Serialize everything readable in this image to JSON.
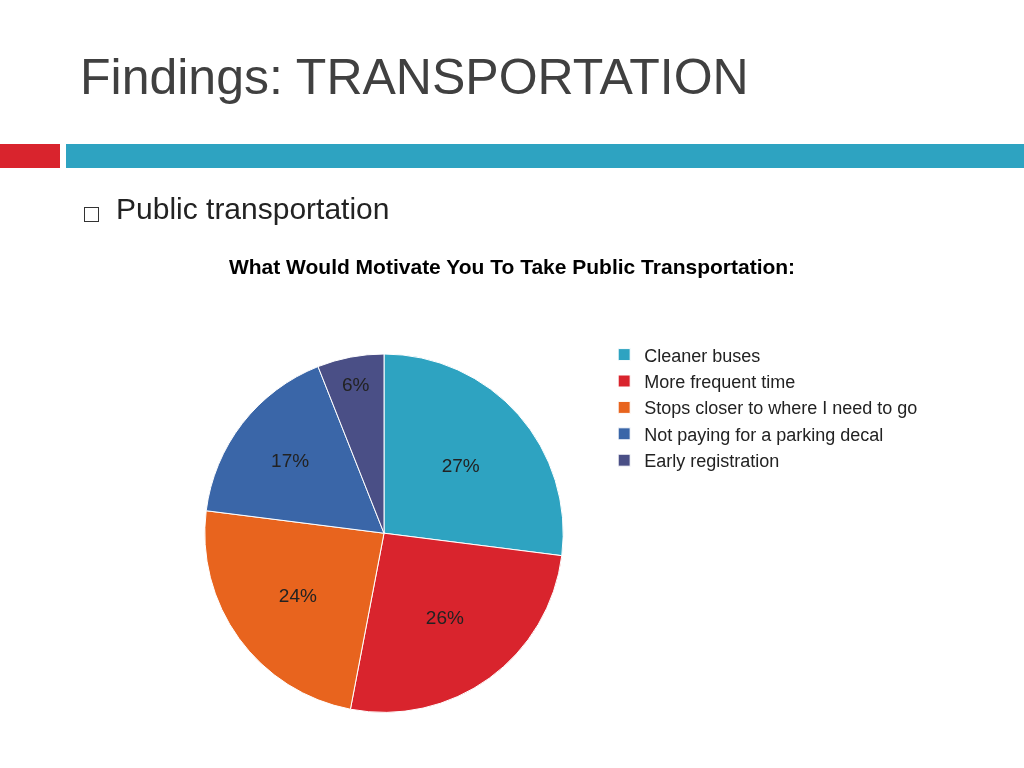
{
  "chart_data": {
    "type": "pie",
    "title": "What Would Motivate You To Take Public Transportation:",
    "annotations": [
      "Findings: TRANSPORTATION",
      "Public transportation"
    ],
    "categories": [
      "Cleaner buses",
      "More frequent time",
      "Stops closer to where I need to go",
      "Not paying for a parking decal",
      "Early registration"
    ],
    "values": [
      27,
      26,
      24,
      17,
      6
    ],
    "value_labels": [
      "27%",
      "26%",
      "24%",
      "17%",
      "6%"
    ],
    "colors": [
      "#2ea3c1",
      "#d9242d",
      "#e8641e",
      "#3a66a8",
      "#4a4f86"
    ],
    "legend": "right"
  }
}
